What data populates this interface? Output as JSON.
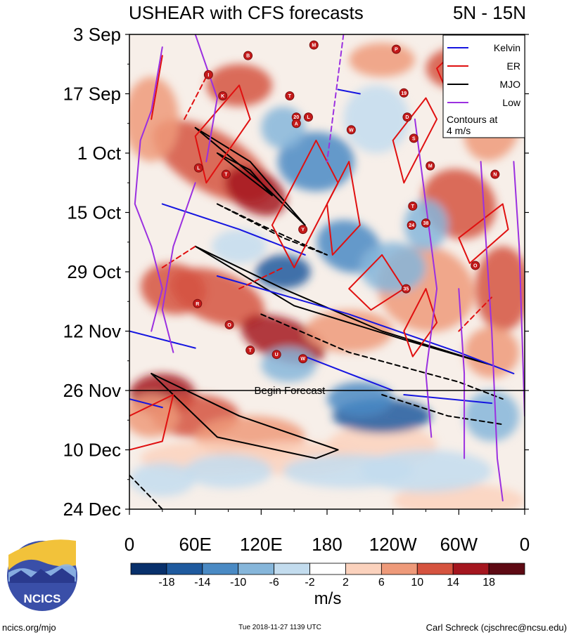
{
  "chart_data": {
    "type": "heatmap",
    "title": "USHEAR with CFS forecasts",
    "subtitle": "5N - 15N",
    "x_ticks": [
      "0",
      "60E",
      "120E",
      "180",
      "120W",
      "60W",
      "0"
    ],
    "x_tick_lon": [
      0,
      60,
      120,
      180,
      240,
      300,
      360
    ],
    "y_ticks": [
      "3 Sep",
      "17 Sep",
      "1 Oct",
      "15 Oct",
      "29 Oct",
      "12 Nov",
      "26 Nov",
      "10 Dec",
      "24 Dec"
    ],
    "y_tick_day": [
      0,
      14,
      28,
      42,
      56,
      70,
      84,
      98,
      112
    ],
    "forecast_day": 84,
    "forecast_label": "Begin Forecast",
    "colorbar": {
      "units": "m/s",
      "levels": [
        "-18",
        "-14",
        "-10",
        "-6",
        "-2",
        "2",
        "6",
        "10",
        "14",
        "18"
      ],
      "colors": [
        "#08306b",
        "#1f5a9e",
        "#4a8ac4",
        "#86b6da",
        "#c3dcee",
        "#ffffff",
        "#fbd2bd",
        "#ee9a7a",
        "#d5533f",
        "#a4161f",
        "#5e0a14"
      ]
    },
    "legend": {
      "items": [
        {
          "label": "Kelvin",
          "color": "#1515e0"
        },
        {
          "label": "ER",
          "color": "#e01010"
        },
        {
          "label": "MJO",
          "color": "#000000"
        },
        {
          "label": "Low",
          "color": "#9b30e0"
        }
      ],
      "note1": "Contours at",
      "note2": "4 m/s"
    },
    "storm_marks": [
      {
        "lon": 243,
        "day": 3.5,
        "label": "P"
      },
      {
        "lon": 108,
        "day": 5,
        "label": "B"
      },
      {
        "lon": 168,
        "day": 2.5,
        "label": "M"
      },
      {
        "lon": 72,
        "day": 9.5,
        "label": "I"
      },
      {
        "lon": 85,
        "day": 14.5,
        "label": "K"
      },
      {
        "lon": 146,
        "day": 14.5,
        "label": "T"
      },
      {
        "lon": 250,
        "day": 13.8,
        "label": "19"
      },
      {
        "lon": 152,
        "day": 19.5,
        "label": "20"
      },
      {
        "lon": 163,
        "day": 19.5,
        "label": "L"
      },
      {
        "lon": 152,
        "day": 21,
        "label": "A"
      },
      {
        "lon": 202,
        "day": 22.5,
        "label": "W"
      },
      {
        "lon": 253,
        "day": 19.5,
        "label": "D"
      },
      {
        "lon": 259,
        "day": 24.5,
        "label": "S"
      },
      {
        "lon": 63,
        "day": 31.5,
        "label": "L"
      },
      {
        "lon": 88,
        "day": 33,
        "label": "T"
      },
      {
        "lon": 274,
        "day": 31,
        "label": "M"
      },
      {
        "lon": 333,
        "day": 33,
        "label": "N"
      },
      {
        "lon": 258,
        "day": 40.5,
        "label": "T"
      },
      {
        "lon": 257,
        "day": 45,
        "label": "24"
      },
      {
        "lon": 270,
        "day": 44.5,
        "label": "38"
      },
      {
        "lon": 158,
        "day": 46,
        "label": "Y"
      },
      {
        "lon": 315,
        "day": 54.5,
        "label": "O"
      },
      {
        "lon": 252,
        "day": 60,
        "label": "35"
      },
      {
        "lon": 62,
        "day": 63.5,
        "label": "R"
      },
      {
        "lon": 91,
        "day": 68.5,
        "label": "O"
      },
      {
        "lon": 110,
        "day": 74.5,
        "label": "T"
      },
      {
        "lon": 134,
        "day": 75.5,
        "label": "U"
      },
      {
        "lon": 158,
        "day": 76.5,
        "label": "W"
      }
    ]
  },
  "footer": {
    "logo_text": "NCICS",
    "left": "ncics.org/mjo",
    "center": "Tue 2018-11-27 1139 UTC",
    "right": "Carl Schreck (cjschrec@ncsu.edu)"
  }
}
